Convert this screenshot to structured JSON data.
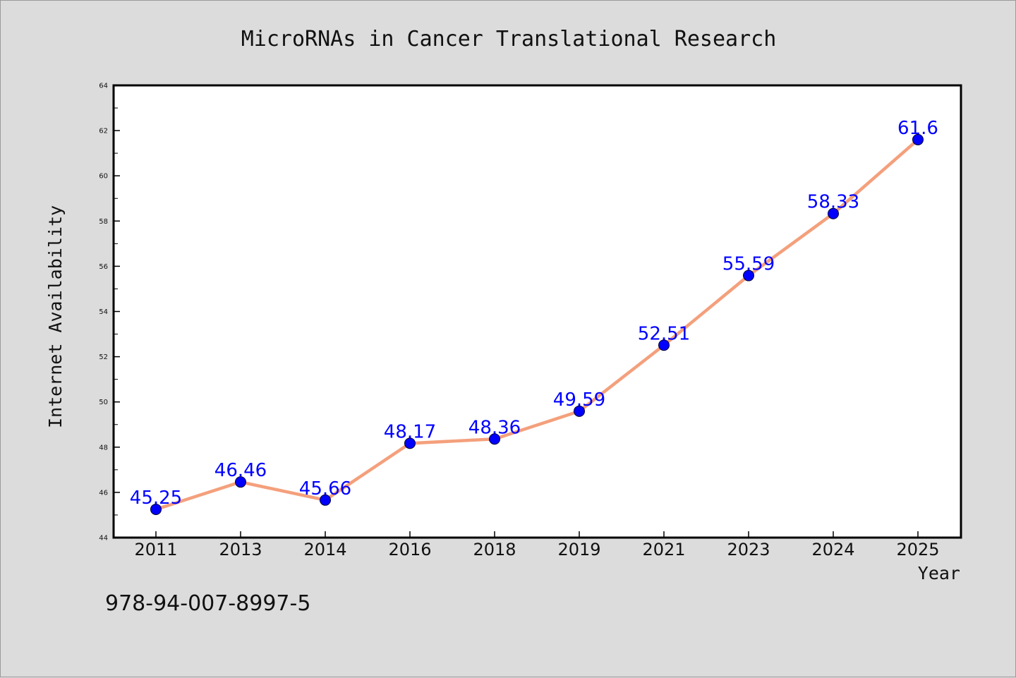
{
  "chart_data": {
    "type": "line",
    "title": "MicroRNAs in Cancer Translational Research",
    "xlabel": "Year",
    "ylabel": "Internet Availability",
    "categories": [
      "2011",
      "2013",
      "2014",
      "2016",
      "2018",
      "2019",
      "2021",
      "2023",
      "2024",
      "2025"
    ],
    "series": [
      {
        "values": [
          45.25,
          46.46,
          45.66,
          48.17,
          48.36,
          49.59,
          52.51,
          55.59,
          58.33,
          61.6
        ],
        "labels": [
          "45.25",
          "46.46",
          "45.66",
          "48.17",
          "48.36",
          "49.59",
          "52.51",
          "55.59",
          "58.33",
          "61.6"
        ]
      }
    ],
    "ylim": [
      44,
      64
    ],
    "yticks": [
      44,
      46,
      48,
      50,
      52,
      54,
      56,
      58,
      60,
      62,
      64
    ],
    "ytick_labels": [
      "44",
      "46",
      "48",
      "50",
      "52",
      "54",
      "56",
      "58",
      "60",
      "62",
      "64"
    ],
    "grid": false,
    "colors": {
      "line": "#f4a07c",
      "marker": "#0000ff",
      "data_label": "#0000ff",
      "plot_background": "#ffffff",
      "page_background": "#dcdcdc"
    }
  },
  "footer": {
    "text": "978-94-007-8997-5"
  }
}
